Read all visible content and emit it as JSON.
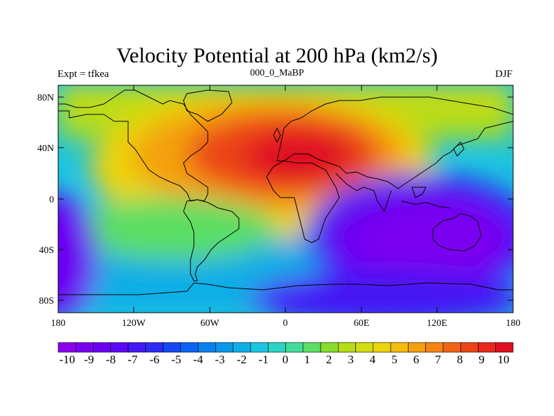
{
  "title": "Velocity Potential at 200 hPa (km2/s)",
  "left_string": "Expt = tfkea",
  "center_string": "000_0_MaBP",
  "right_string": "DJF",
  "lat_ticks": [
    "80N",
    "40N",
    "0",
    "40S",
    "80S"
  ],
  "lon_ticks": [
    "180",
    "120W",
    "60W",
    "0",
    "60E",
    "120E",
    "180"
  ],
  "colorbar": {
    "labels": [
      "-10",
      "-9",
      "-8",
      "-7",
      "-6",
      "-5",
      "-4",
      "-3",
      "-2",
      "-1",
      "0",
      "1",
      "2",
      "3",
      "4",
      "5",
      "6",
      "7",
      "8",
      "9",
      "10"
    ],
    "colors": [
      "#8c00ee",
      "#7c00f0",
      "#6c00f2",
      "#5c08f4",
      "#4418f4",
      "#2c2cf4",
      "#1448f4",
      "#0a64f2",
      "#0a80ee",
      "#0898ea",
      "#10aee6",
      "#1cc4e0",
      "#2cd4c4",
      "#44dc9c",
      "#5cde64",
      "#88dc2c",
      "#b4dc18",
      "#d4dc10",
      "#ecd40c",
      "#f4bc0c",
      "#f4a010",
      "#f48414",
      "#f06414",
      "#ec4418",
      "#e8281c",
      "#e01020"
    ],
    "levels": [
      -10,
      10
    ]
  },
  "map_data": {
    "field": "velocity potential",
    "level_hPa": 200,
    "units": "km2/s",
    "lon_range": [
      -180,
      180
    ],
    "lat_range": [
      -90,
      90
    ],
    "min": -10,
    "max": 10
  }
}
